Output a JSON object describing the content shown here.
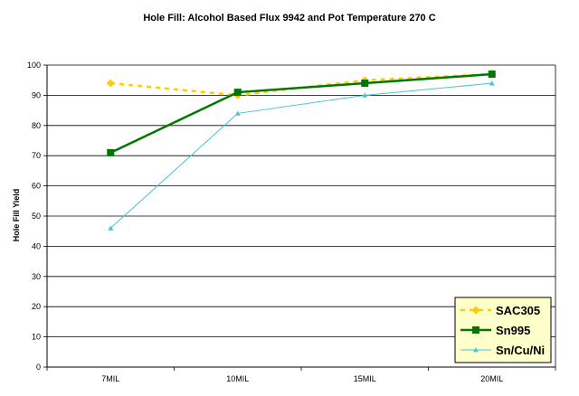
{
  "chart_data": {
    "type": "line",
    "title": "Hole Fill: Alcohol Based Flux 9942 and Pot Temperature 270 C",
    "xlabel": "",
    "ylabel": "Hole Fill Yield",
    "categories": [
      "7MIL",
      "10MIL",
      "15MIL",
      "20MIL"
    ],
    "ylim": [
      0,
      100
    ],
    "yticks": [
      0,
      10,
      20,
      30,
      40,
      50,
      60,
      70,
      80,
      90,
      100
    ],
    "grid": true,
    "legend_position": "bottom-right",
    "series": [
      {
        "name": "SAC305",
        "values": [
          94,
          90,
          95,
          97
        ],
        "color": "#FFCC00",
        "marker": "diamond",
        "line_style": "dashed"
      },
      {
        "name": "Sn995",
        "values": [
          71,
          91,
          94,
          97
        ],
        "color": "#007700",
        "marker": "square",
        "line_style": "solid"
      },
      {
        "name": "Sn/Cu/Ni",
        "values": [
          46,
          84,
          90,
          94
        ],
        "color": "#4CC2D8",
        "marker": "triangle",
        "line_style": "solid"
      }
    ]
  }
}
